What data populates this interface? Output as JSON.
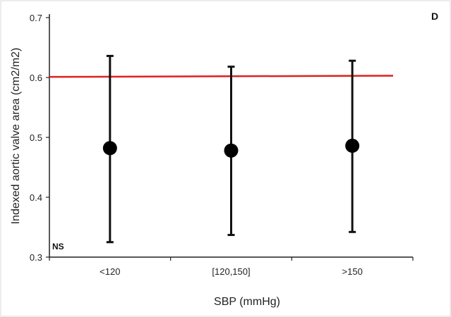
{
  "chart_data": {
    "type": "scatter",
    "panel_label": "D",
    "annotation": "NS",
    "xlabel": "SBP (mmHg)",
    "ylabel": "Indexed aortic valve area (cm2/m2)",
    "categories": [
      "<120",
      "[120,150]",
      ">150"
    ],
    "series": [
      {
        "values": [
          0.482,
          0.478,
          0.486
        ],
        "error_low": [
          0.325,
          0.337,
          0.342
        ],
        "error_high": [
          0.636,
          0.618,
          0.628
        ]
      }
    ],
    "reference_line": {
      "y_start": 0.601,
      "y_end": 0.603,
      "color": "#e02020"
    },
    "ylim": [
      0.3,
      0.7
    ],
    "yticks": [
      "0.3",
      "0.4",
      "0.5",
      "0.6",
      "0.7"
    ],
    "grid": false
  }
}
